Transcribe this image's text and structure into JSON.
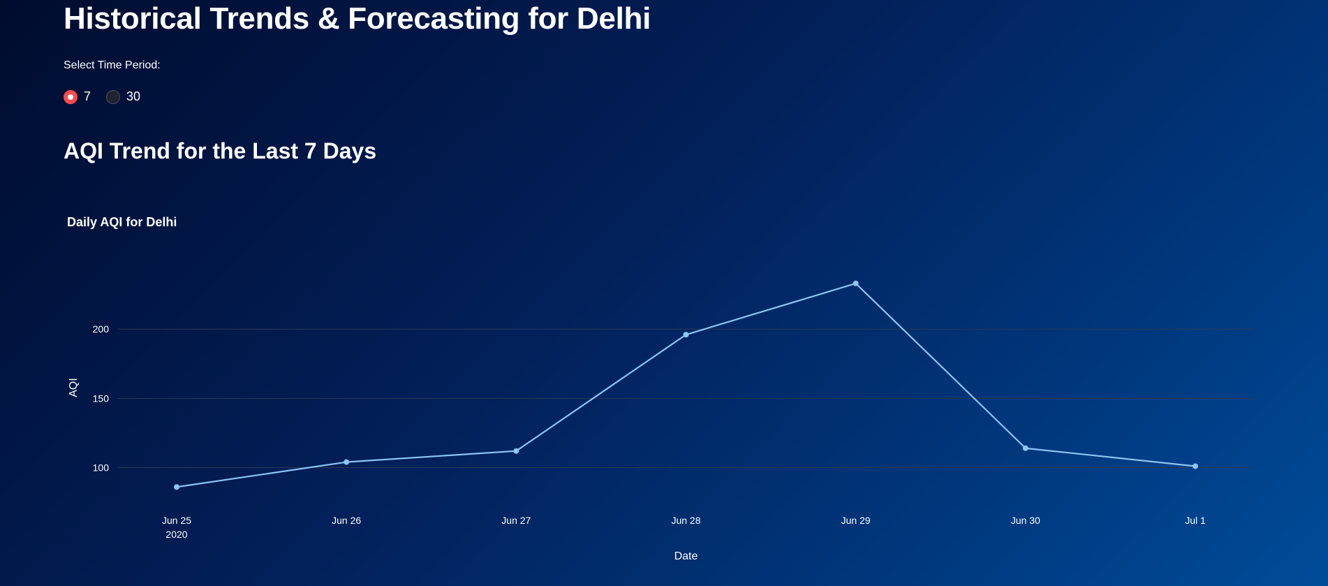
{
  "page": {
    "title": "Historical Trends & Forecasting for Delhi",
    "radio_label": "Select Time Period:",
    "radio_options": [
      "7",
      "30"
    ],
    "radio_selected": "7",
    "section_title": "AQI Trend for the Last 7 Days"
  },
  "colors": {
    "line": "#8ec5f5",
    "radio_selected": "#ff4b4b",
    "grid": "#2c3a52"
  },
  "chart_data": {
    "type": "line",
    "title": "Daily AQI for Delhi",
    "xlabel": "Date",
    "ylabel": "AQI",
    "x": [
      "2020-06-25",
      "2020-06-26",
      "2020-06-27",
      "2020-06-28",
      "2020-06-29",
      "2020-06-30",
      "2020-07-01"
    ],
    "x_tick_labels": [
      "Jun 25",
      "Jun 26",
      "Jun 27",
      "Jun 28",
      "Jun 29",
      "Jun 30",
      "Jul 1"
    ],
    "x_tick_sublabel": "2020",
    "y_ticks": [
      100,
      150,
      200
    ],
    "ylim": [
      72,
      246
    ],
    "series": [
      {
        "values": [
          86,
          104,
          112,
          196,
          233,
          114,
          101
        ]
      }
    ],
    "grid": true,
    "legend": "none"
  }
}
